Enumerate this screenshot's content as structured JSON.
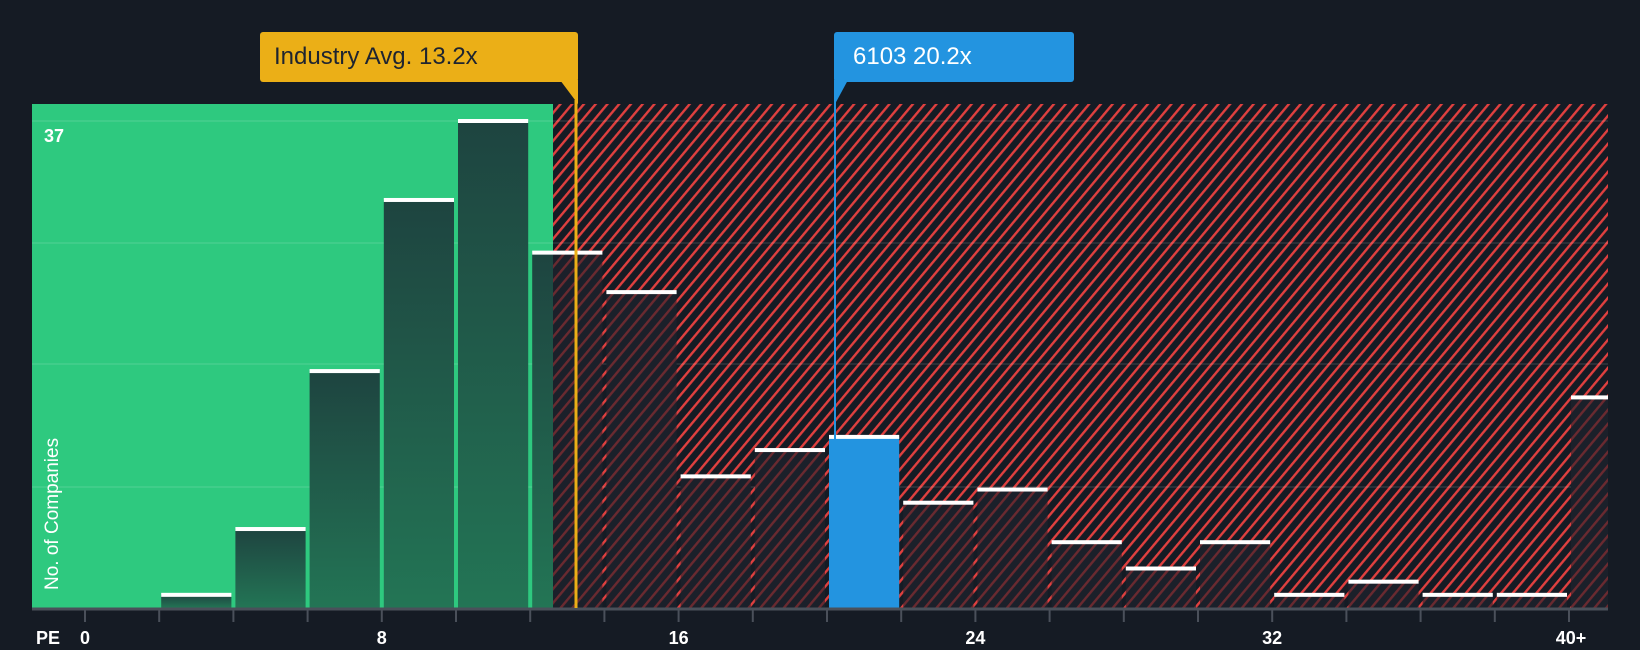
{
  "chart_data": {
    "type": "bar",
    "title": "",
    "xlabel": "PE",
    "ylabel": "No. of Companies",
    "y_max_label": "37",
    "ylim": [
      0,
      37
    ],
    "categories": [
      "0-2",
      "2-4",
      "4-6",
      "6-8",
      "8-10",
      "10-12",
      "12-14",
      "14-16",
      "16-18",
      "18-20",
      "20-22",
      "22-24",
      "24-26",
      "26-28",
      "28-30",
      "30-32",
      "32-34",
      "34-36",
      "36-38",
      "38-40",
      "40+"
    ],
    "values": [
      0,
      1,
      6,
      18,
      31,
      37,
      27,
      24,
      10,
      12,
      13,
      8,
      9,
      5,
      3,
      5,
      1,
      2,
      1,
      1,
      16
    ],
    "highlight_index": 10,
    "x_tick_labels": [
      "0",
      "8",
      "16",
      "24",
      "32",
      "40+"
    ],
    "x_tick_values": [
      0,
      8,
      16,
      24,
      32,
      40
    ],
    "annotations": [
      {
        "label": "Industry Avg. 13.2x",
        "value": 13.2,
        "color": "#ebaf17"
      },
      {
        "label": "6103 20.2x",
        "value": 20.2,
        "color": "#2394e0"
      }
    ],
    "regions": [
      {
        "name": "undervalued",
        "from": 0,
        "to": 12.6,
        "color": "#2ec97f"
      },
      {
        "name": "overvalued",
        "from": 12.6,
        "to": 41,
        "color": "#e0403f",
        "pattern": "hatched"
      }
    ],
    "grid": true,
    "legend": null
  },
  "labels": {
    "industry": "Industry Avg. 13.2x",
    "company": "6103 20.2x",
    "y_axis": "No. of Companies",
    "y_max": "37",
    "x_axis": "PE",
    "ticks": [
      "0",
      "8",
      "16",
      "24",
      "32",
      "40+"
    ]
  },
  "colors": {
    "background": "#151b24",
    "green_zone": "#2ec97f",
    "bar_dark": "#1f4a3e",
    "hatch": "#e0403f",
    "industry": "#ebaf17",
    "company": "#2394e0"
  }
}
